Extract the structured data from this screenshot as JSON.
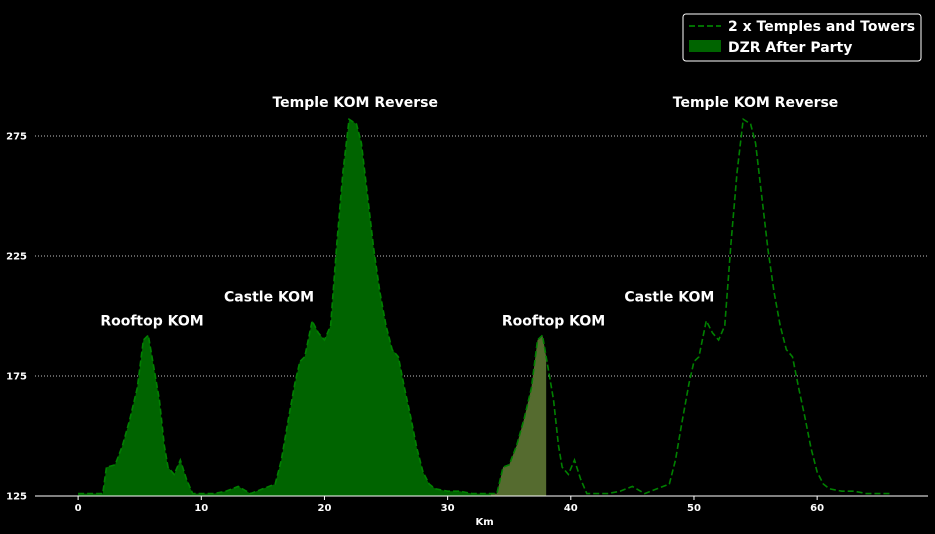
{
  "chart_data": {
    "type": "area",
    "xlabel": "Km",
    "ylabel": "",
    "xlim": [
      -3.5,
      69
    ],
    "ylim": [
      125,
      290
    ],
    "x_ticks": [
      0,
      10,
      20,
      30,
      40,
      50,
      60
    ],
    "y_ticks": [
      125,
      175,
      225,
      275
    ],
    "grid": "horizontal dotted",
    "legend_position": "top-right",
    "colors": {
      "background": "#000000",
      "main_fill": "#006400",
      "main_line": "#008000",
      "highlight_fill": "#556b2f",
      "grid": "#ffffff",
      "text": "#ffffff"
    },
    "series": [
      {
        "name": "2 x Temples and Towers",
        "style": "dashed-line",
        "points": [
          [
            0,
            126
          ],
          [
            1,
            126
          ],
          [
            2,
            126
          ],
          [
            2.3,
            137
          ],
          [
            3,
            138
          ],
          [
            3.6,
            146
          ],
          [
            4.2,
            157
          ],
          [
            4.8,
            170
          ],
          [
            5.3,
            190
          ],
          [
            5.7,
            192
          ],
          [
            6.1,
            180
          ],
          [
            6.6,
            165
          ],
          [
            7,
            146
          ],
          [
            7.3,
            137
          ],
          [
            7.8,
            134
          ],
          [
            8.3,
            140
          ],
          [
            8.8,
            132
          ],
          [
            9.3,
            126
          ],
          [
            10,
            126
          ],
          [
            11,
            126
          ],
          [
            12,
            127
          ],
          [
            13,
            129
          ],
          [
            14,
            126
          ],
          [
            15,
            128
          ],
          [
            16,
            130
          ],
          [
            16.5,
            140
          ],
          [
            17,
            155
          ],
          [
            17.6,
            172
          ],
          [
            18,
            181
          ],
          [
            18.4,
            183
          ],
          [
            19,
            198
          ],
          [
            19.5,
            193
          ],
          [
            20,
            190
          ],
          [
            20.5,
            196
          ],
          [
            21,
            230
          ],
          [
            21.5,
            260
          ],
          [
            22,
            282
          ],
          [
            22.6,
            280
          ],
          [
            23,
            272
          ],
          [
            23.5,
            250
          ],
          [
            24,
            228
          ],
          [
            24.5,
            210
          ],
          [
            25,
            196
          ],
          [
            25.5,
            186
          ],
          [
            26,
            183
          ],
          [
            26.5,
            170
          ],
          [
            27,
            158
          ],
          [
            27.5,
            145
          ],
          [
            28,
            135
          ],
          [
            28.5,
            130
          ],
          [
            29,
            128
          ],
          [
            30,
            127
          ],
          [
            31,
            127
          ],
          [
            32,
            126
          ],
          [
            33,
            126
          ],
          [
            34,
            126
          ],
          [
            34.5,
            137
          ],
          [
            35,
            138
          ],
          [
            35.6,
            146
          ],
          [
            36.2,
            157
          ],
          [
            36.8,
            170
          ],
          [
            37.3,
            190
          ],
          [
            37.7,
            192
          ],
          [
            38.1,
            180
          ],
          [
            38.6,
            165
          ],
          [
            39,
            146
          ],
          [
            39.3,
            137
          ],
          [
            39.8,
            134
          ],
          [
            40.3,
            140
          ],
          [
            40.8,
            132
          ],
          [
            41.3,
            126
          ],
          [
            42,
            126
          ],
          [
            43,
            126
          ],
          [
            44,
            127
          ],
          [
            45,
            129
          ],
          [
            46,
            126
          ],
          [
            47,
            128
          ],
          [
            48,
            130
          ],
          [
            48.5,
            140
          ],
          [
            49,
            155
          ],
          [
            49.6,
            172
          ],
          [
            50,
            181
          ],
          [
            50.4,
            183
          ],
          [
            51,
            198
          ],
          [
            51.5,
            193
          ],
          [
            52,
            190
          ],
          [
            52.5,
            196
          ],
          [
            53,
            230
          ],
          [
            53.5,
            260
          ],
          [
            54,
            282
          ],
          [
            54.6,
            280
          ],
          [
            55,
            272
          ],
          [
            55.5,
            250
          ],
          [
            56,
            228
          ],
          [
            56.5,
            210
          ],
          [
            57,
            196
          ],
          [
            57.5,
            186
          ],
          [
            58,
            183
          ],
          [
            58.5,
            170
          ],
          [
            59,
            158
          ],
          [
            59.5,
            145
          ],
          [
            60,
            135
          ],
          [
            60.5,
            130
          ],
          [
            61,
            128
          ],
          [
            62,
            127
          ],
          [
            63,
            127
          ],
          [
            64,
            126
          ],
          [
            65,
            126
          ],
          [
            66,
            126
          ]
        ]
      },
      {
        "name": "DZR After Party",
        "style": "filled-area",
        "x_range": [
          0,
          38
        ],
        "highlight_x_range": [
          33.5,
          38
        ]
      }
    ],
    "annotations": [
      {
        "text": "Rooftop KOM",
        "x": 6,
        "y": 196
      },
      {
        "text": "Castle KOM",
        "x": 15.5,
        "y": 206
      },
      {
        "text": "Temple KOM Reverse",
        "x": 22.5,
        "y": 287
      },
      {
        "text": "Rooftop KOM",
        "x": 38.6,
        "y": 196
      },
      {
        "text": "Castle KOM",
        "x": 48,
        "y": 206
      },
      {
        "text": "Temple KOM Reverse",
        "x": 55,
        "y": 287
      }
    ]
  }
}
